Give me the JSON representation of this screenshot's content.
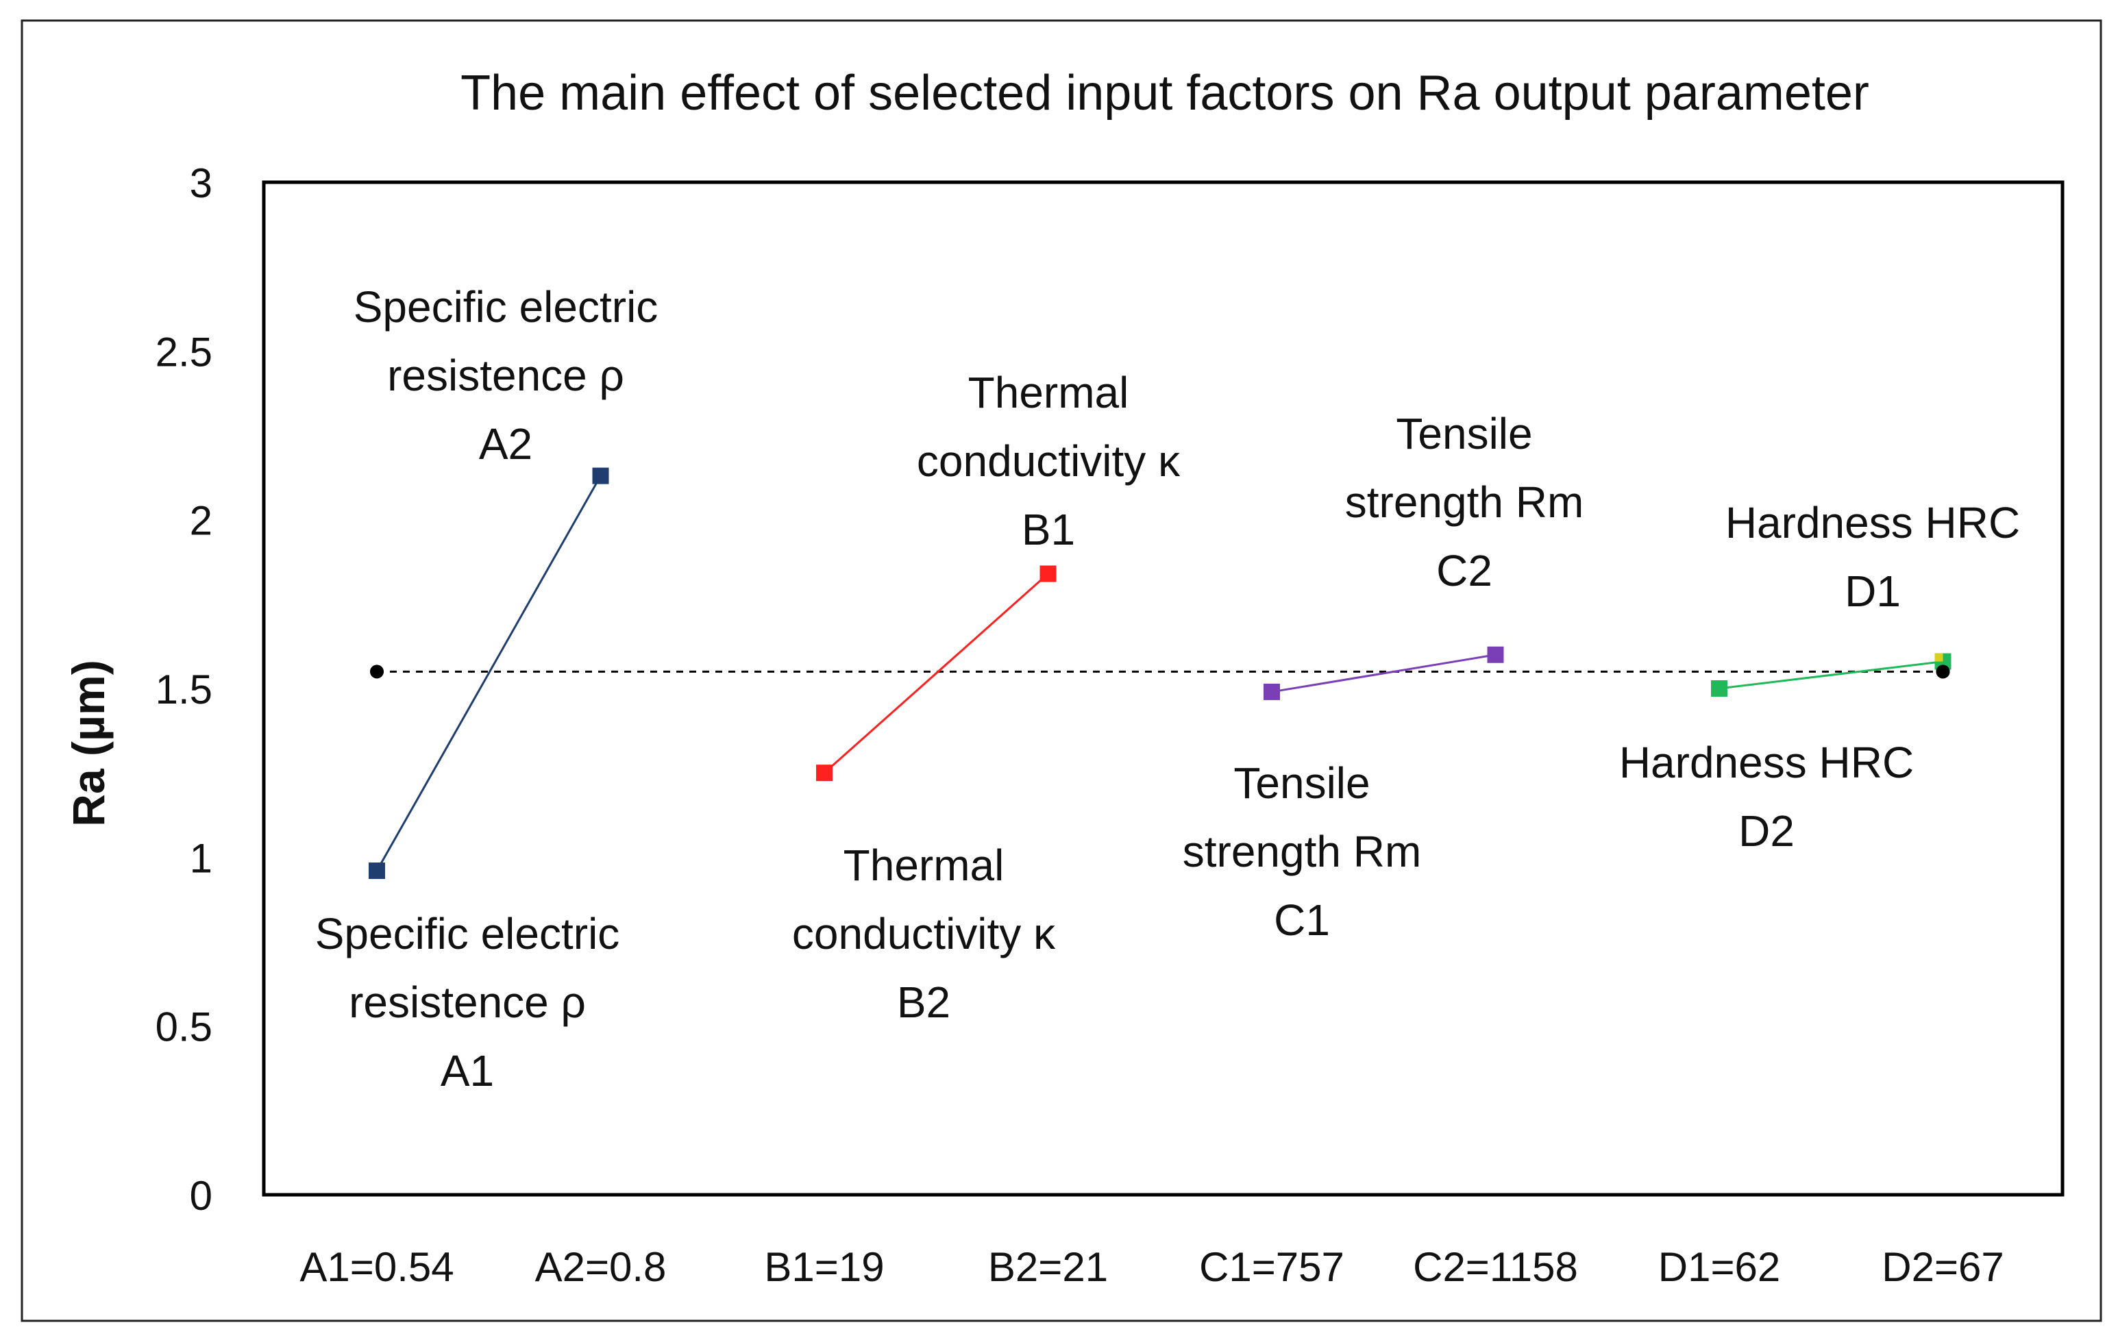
{
  "chart_data": {
    "type": "line",
    "title": "The main effect of selected input factors on Ra output parameter",
    "xlabel": "",
    "ylabel": "Ra (µm)",
    "ylim": [
      0,
      3
    ],
    "yticks": [
      0,
      0.5,
      1,
      1.5,
      2,
      2.5,
      3
    ],
    "grid": false,
    "categories": [
      "A1=0.54",
      "A2=0.8",
      "B1=19",
      "B2=21",
      "C1=757",
      "C2=1158",
      "D1=62",
      "D2=67"
    ],
    "mean_line": {
      "value": 1.55,
      "style": "dashed",
      "color": "#000000"
    },
    "series": [
      {
        "name": "Specific electric resistence ρ",
        "color": "#1f3d6e",
        "points": [
          [
            0,
            0.96
          ],
          [
            1,
            2.13
          ]
        ]
      },
      {
        "name": "Thermal conductivity κ",
        "color": "#ff2020",
        "points": [
          [
            2,
            1.25
          ],
          [
            3,
            1.84
          ]
        ]
      },
      {
        "name": "Tensile strength Rm",
        "color": "#7b3fb5",
        "points": [
          [
            4,
            1.49
          ],
          [
            5,
            1.6
          ]
        ]
      },
      {
        "name": "Hardness HRC",
        "color": "#22b85a",
        "points": [
          [
            6,
            1.5
          ],
          [
            7,
            1.58
          ]
        ]
      }
    ],
    "annotations": [
      {
        "id": "A2",
        "lines": [
          "Specific electric",
          "resistence ρ",
          "A2"
        ]
      },
      {
        "id": "A1",
        "lines": [
          "Specific electric",
          "resistence ρ",
          "A1"
        ]
      },
      {
        "id": "B1",
        "lines": [
          "Thermal",
          "conductivity κ",
          "B1"
        ]
      },
      {
        "id": "B2",
        "lines": [
          "Thermal",
          "conductivity κ",
          "B2"
        ]
      },
      {
        "id": "C2",
        "lines": [
          "Tensile",
          "strength Rm",
          "C2"
        ]
      },
      {
        "id": "C1",
        "lines": [
          "Tensile",
          "strength Rm",
          "C1"
        ]
      },
      {
        "id": "D1",
        "lines": [
          "Hardness HRC",
          "D1"
        ]
      },
      {
        "id": "D2",
        "lines": [
          "Hardness HRC",
          "D2"
        ]
      }
    ]
  }
}
